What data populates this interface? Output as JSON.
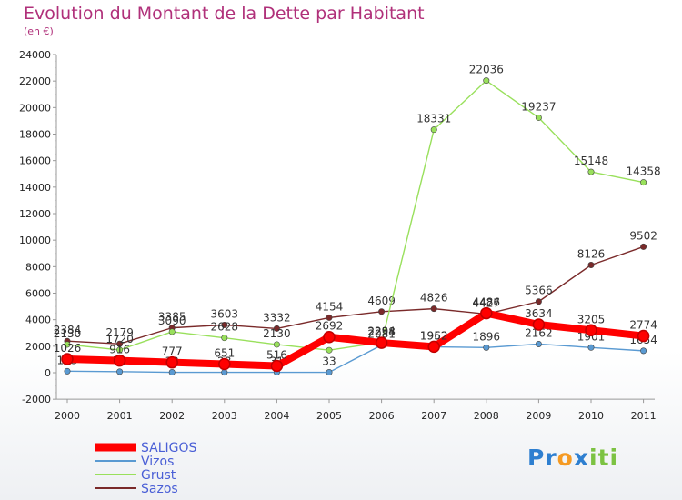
{
  "chart_data": {
    "type": "line",
    "title": "Evolution du Montant de la Dette par Habitant",
    "subtitle": "(en €)",
    "categories": [
      "2000",
      "2001",
      "2002",
      "2003",
      "2004",
      "2005",
      "2006",
      "2007",
      "2008",
      "2009",
      "2010",
      "2011"
    ],
    "ylim": [
      -2000,
      24000
    ],
    "yticks": [
      -2000,
      0,
      2000,
      4000,
      6000,
      8000,
      10000,
      12000,
      14000,
      16000,
      18000,
      20000,
      22000,
      24000
    ],
    "grid": false,
    "legend_placement": "bottom-left",
    "series": [
      {
        "name": "SALIGOS",
        "color": "#ff0000",
        "values": [
          1026,
          916,
          777,
          651,
          516,
          2692,
          2258,
          1962,
          4486,
          3634,
          3205,
          2774
        ],
        "labels": [
          "1026",
          "916",
          "777",
          "651",
          "516",
          "2692",
          "2258",
          "1962",
          "4486",
          "3634",
          "3205",
          "2774"
        ]
      },
      {
        "name": "Vizos",
        "color": "#5a9ad2",
        "values": [
          113,
          79,
          33,
          28,
          31,
          33,
          2081,
          1952,
          1896,
          2162,
          1901,
          1654
        ],
        "labels": [
          "113",
          "79",
          "33",
          "28",
          "31",
          "33",
          "2081",
          "1952",
          "1896",
          "2162",
          "1901",
          "1654"
        ]
      },
      {
        "name": "Grust",
        "color": "#99e05c",
        "values": [
          2130,
          1720,
          3090,
          2628,
          2130,
          1700,
          2294,
          18331,
          22036,
          19237,
          15148,
          14358
        ],
        "labels": [
          "2130",
          "1720",
          "3090",
          "2628",
          "2130",
          "",
          "2294",
          "18331",
          "22036",
          "19237",
          "15148",
          "14358"
        ]
      },
      {
        "name": "Sazos",
        "color": "#7a2a2a",
        "values": [
          2384,
          2179,
          3385,
          3603,
          3332,
          4154,
          4609,
          4826,
          4427,
          5366,
          8126,
          9502
        ],
        "labels": [
          "2384",
          "2179",
          "3385",
          "3603",
          "3332",
          "4154",
          "4609",
          "4826",
          "4427",
          "5366",
          "8126",
          "9502"
        ]
      }
    ]
  },
  "logo": {
    "letters": [
      "P",
      "r",
      "o",
      "x",
      "i",
      "t",
      "i"
    ],
    "colors": [
      "#2e7fd0",
      "#2e7fd0",
      "#f59a23",
      "#2e7fd0",
      "#7cc242",
      "#7cc242",
      "#7cc242"
    ]
  }
}
